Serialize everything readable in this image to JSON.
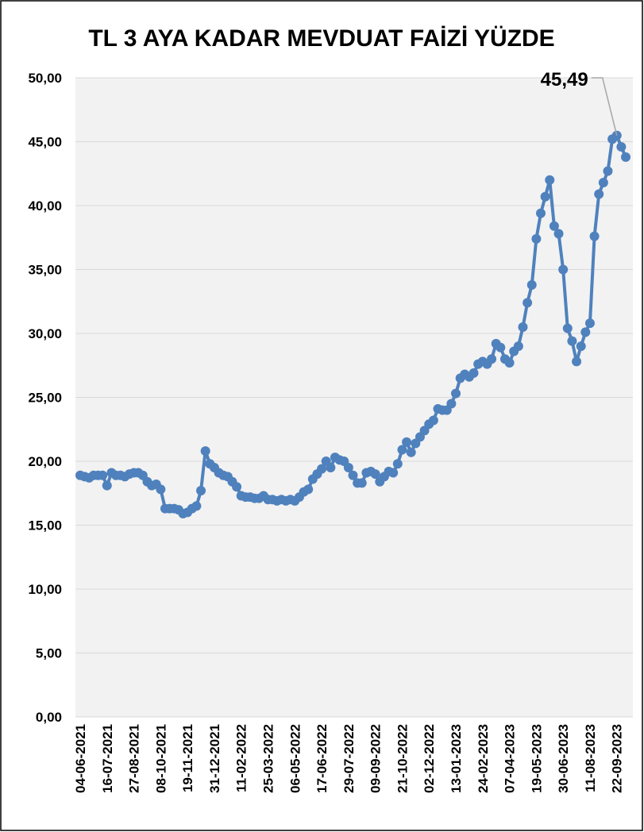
{
  "chart_data": {
    "type": "line",
    "title": "TL 3 AYA KADAR MEVDUAT FAİZİ YÜZDE",
    "categories": [
      "04-06-2021",
      null,
      null,
      null,
      null,
      null,
      "16-07-2021",
      null,
      null,
      null,
      null,
      null,
      "27-08-2021",
      null,
      null,
      null,
      null,
      null,
      "08-10-2021",
      null,
      null,
      null,
      null,
      null,
      "19-11-2021",
      null,
      null,
      null,
      null,
      null,
      "31-12-2021",
      null,
      null,
      null,
      null,
      null,
      "11-02-2022",
      null,
      null,
      null,
      null,
      null,
      "25-03-2022",
      null,
      null,
      null,
      null,
      null,
      "06-05-2022",
      null,
      null,
      null,
      null,
      null,
      "17-06-2022",
      null,
      null,
      null,
      null,
      null,
      "29-07-2022",
      null,
      null,
      null,
      null,
      null,
      "09-09-2022",
      null,
      null,
      null,
      null,
      null,
      "21-10-2022",
      null,
      null,
      null,
      null,
      null,
      "02-12-2022",
      null,
      null,
      null,
      null,
      null,
      "13-01-2023",
      null,
      null,
      null,
      null,
      null,
      "24-02-2023",
      null,
      null,
      null,
      null,
      null,
      "07-04-2023",
      null,
      null,
      null,
      null,
      null,
      "19-05-2023",
      null,
      null,
      null,
      null,
      null,
      "30-06-2023",
      null,
      null,
      null,
      null,
      null,
      "11-08-2023",
      null,
      null,
      null,
      null,
      null,
      "22-09-2023",
      null,
      null
    ],
    "series": [
      {
        "color": "#4f81bd",
        "values": [
          18.9,
          18.8,
          18.7,
          18.9,
          18.9,
          18.9,
          18.1,
          19.1,
          18.9,
          18.9,
          18.8,
          19.0,
          19.1,
          19.1,
          18.9,
          18.4,
          18.1,
          18.2,
          17.8,
          16.3,
          16.3,
          16.3,
          16.2,
          15.9,
          16.0,
          16.3,
          16.5,
          17.7,
          20.8,
          19.8,
          19.5,
          19.1,
          18.9,
          18.8,
          18.4,
          18.0,
          17.3,
          17.2,
          17.2,
          17.1,
          17.1,
          17.3,
          17.0,
          17.0,
          16.9,
          17.0,
          16.9,
          17.0,
          16.9,
          17.2,
          17.6,
          17.8,
          18.6,
          19.0,
          19.4,
          20.0,
          19.5,
          20.3,
          20.1,
          20.0,
          19.5,
          18.9,
          18.3,
          18.3,
          19.1,
          19.2,
          19.0,
          18.4,
          18.8,
          19.2,
          19.1,
          19.8,
          20.9,
          21.5,
          20.7,
          21.4,
          21.9,
          22.4,
          22.9,
          23.2,
          24.1,
          24.0,
          24.0,
          24.5,
          25.3,
          26.5,
          26.8,
          26.6,
          26.9,
          27.6,
          27.8,
          27.6,
          28.0,
          29.2,
          28.9,
          28.0,
          27.7,
          28.6,
          29.0,
          30.5,
          32.4,
          33.8,
          37.4,
          39.4,
          40.7,
          42.0,
          38.4,
          37.8,
          35.0,
          30.4,
          29.4,
          27.8,
          29.0,
          30.1,
          30.8,
          37.6,
          40.9,
          41.8,
          42.7,
          45.2,
          45.49,
          44.6,
          43.8
        ],
        "value_labels": [
          null,
          null,
          null,
          null,
          null,
          null,
          null,
          null,
          null,
          null,
          null,
          null,
          null,
          null,
          null,
          null,
          null,
          null,
          null,
          null,
          null,
          null,
          null,
          null,
          null,
          null,
          null,
          null,
          null,
          null,
          null,
          null,
          null,
          null,
          null,
          null,
          null,
          null,
          null,
          null,
          null,
          null,
          null,
          null,
          null,
          null,
          null,
          null,
          null,
          null,
          null,
          null,
          null,
          null,
          null,
          null,
          null,
          null,
          null,
          null,
          null,
          null,
          null,
          null,
          null,
          null,
          null,
          null,
          null,
          null,
          null,
          null,
          null,
          null,
          null,
          null,
          null,
          null,
          null,
          null,
          null,
          null,
          null,
          null,
          null,
          null,
          null,
          null,
          null,
          null,
          null,
          null,
          null,
          null,
          null,
          null,
          null,
          null,
          null,
          null,
          null,
          null,
          null,
          null,
          null,
          null,
          null,
          null,
          null,
          null,
          null,
          null,
          null,
          null,
          null,
          null,
          null,
          null,
          null,
          null,
          "45,49",
          null,
          null
        ]
      }
    ],
    "ylim": [
      0,
      50
    ],
    "yticks": [
      {
        "value": 0,
        "label": "0,00"
      },
      {
        "value": 5,
        "label": "5,00"
      },
      {
        "value": 10,
        "label": "10,00"
      },
      {
        "value": 15,
        "label": "15,00"
      },
      {
        "value": 20,
        "label": "20,00"
      },
      {
        "value": 25,
        "label": "25,00"
      },
      {
        "value": 30,
        "label": "30,00"
      },
      {
        "value": 35,
        "label": "35,00"
      },
      {
        "value": 40,
        "label": "40,00"
      },
      {
        "value": 45,
        "label": "45,00"
      },
      {
        "value": 50,
        "label": "50,00"
      }
    ],
    "grid": true
  }
}
